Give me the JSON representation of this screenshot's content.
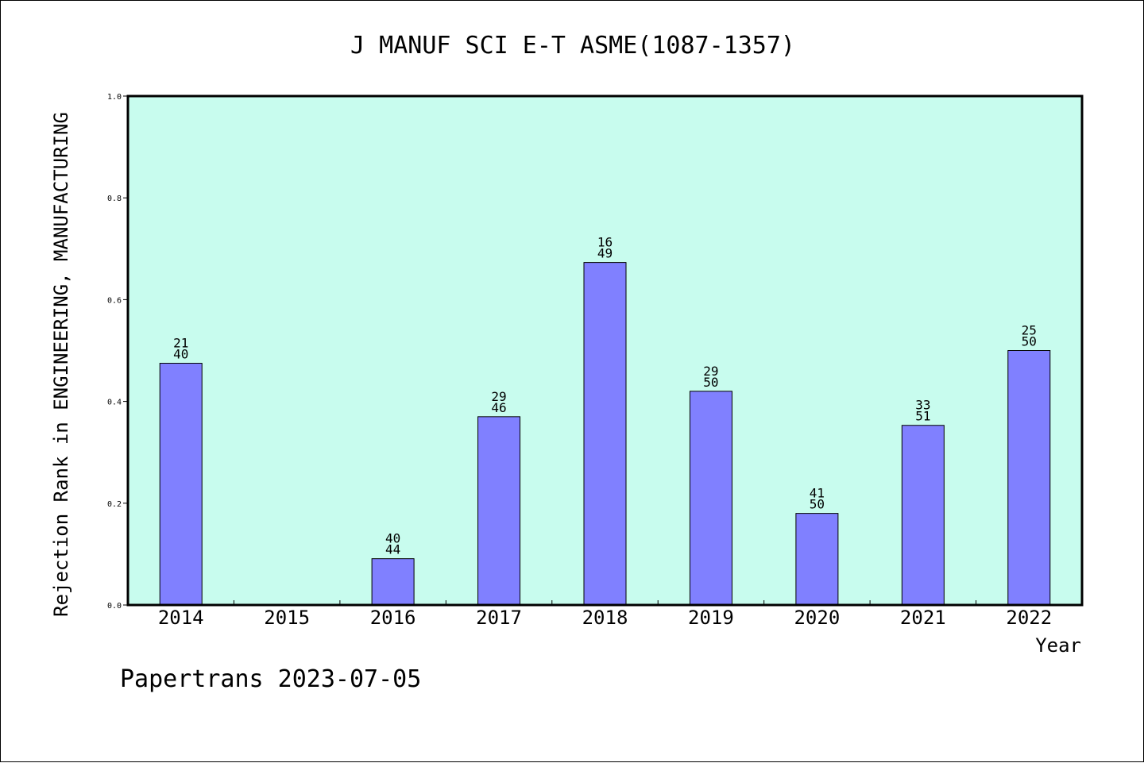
{
  "chart_data": {
    "type": "bar",
    "title": "J MANUF SCI E-T ASME(1087-1357)",
    "xlabel": "Year",
    "ylabel": "Rejection Rank in ENGINEERING, MANUFACTURING",
    "ylim": [
      0,
      1.0
    ],
    "yticks": [
      "0.0",
      "0.2",
      "0.4",
      "0.6",
      "0.8",
      "1.0"
    ],
    "categories": [
      "2014",
      "2015",
      "2016",
      "2017",
      "2018",
      "2019",
      "2020",
      "2021",
      "2022"
    ],
    "values": [
      0.475,
      0,
      0.091,
      0.37,
      0.673,
      0.42,
      0.18,
      0.353,
      0.5
    ],
    "labels_top": [
      "21",
      "",
      "40",
      "29",
      "16",
      "29",
      "41",
      "33",
      "25"
    ],
    "labels_bottom": [
      "40",
      "",
      "44",
      "46",
      "49",
      "50",
      "50",
      "51",
      "50"
    ],
    "colors": {
      "plot_background": "#c8fcee",
      "bar_fill": "#8080ff",
      "bar_stroke": "#000000"
    },
    "grid": false,
    "legend": "none"
  },
  "footer": {
    "text": "Papertrans 2023-07-05"
  }
}
